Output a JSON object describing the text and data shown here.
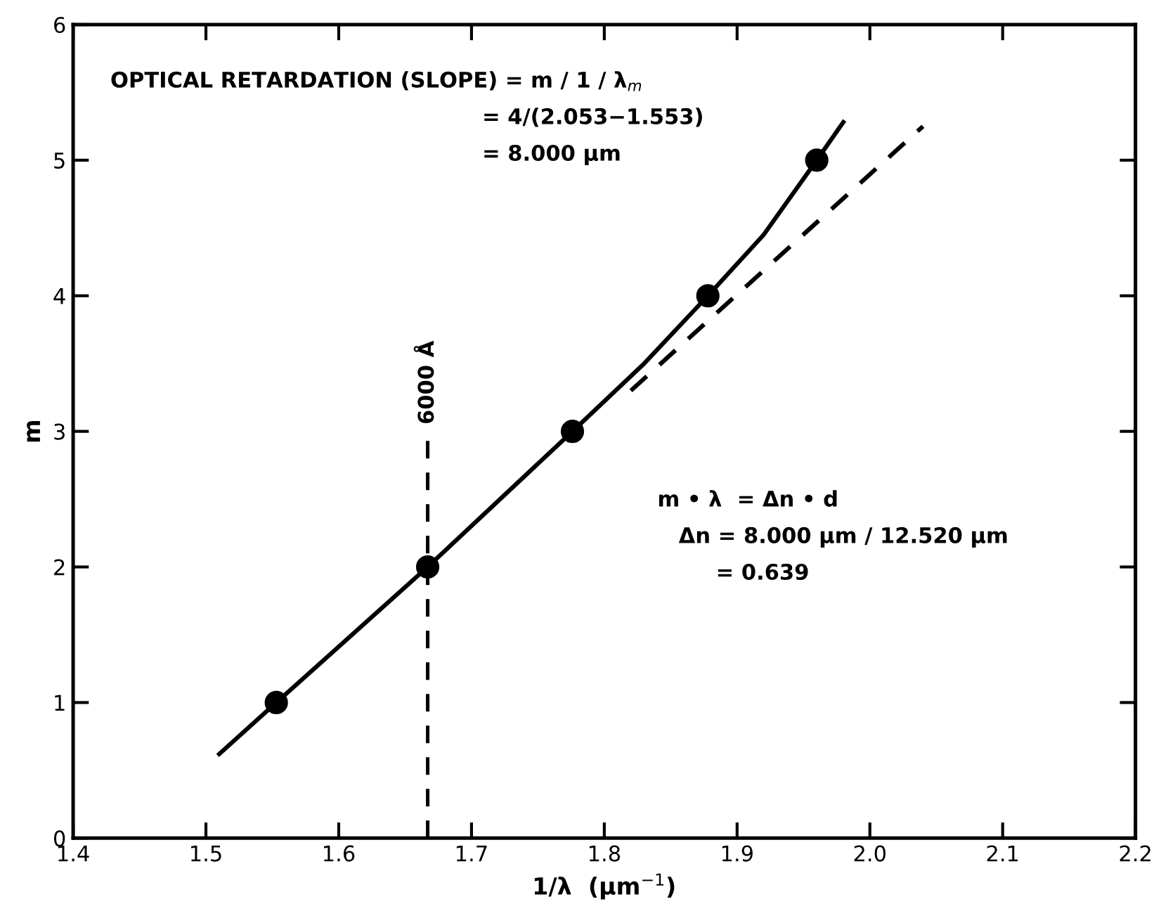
{
  "chart_data": {
    "type": "scatter",
    "xlabel": "1/λ  (μm$^{−1}$)",
    "ylabel": "m",
    "xlim": [
      1.4,
      2.2
    ],
    "ylim": [
      0,
      6
    ],
    "xticks": [
      {
        "value": 1.4,
        "label": "1.4"
      },
      {
        "value": 1.5,
        "label": "1.5"
      },
      {
        "value": 1.6,
        "label": "1.6"
      },
      {
        "value": 1.7,
        "label": "1.7"
      },
      {
        "value": 1.8,
        "label": "1.8"
      },
      {
        "value": 1.9,
        "label": "1.9"
      },
      {
        "value": 2.0,
        "label": "2.0"
      },
      {
        "value": 2.1,
        "label": "2.1"
      },
      {
        "value": 2.2,
        "label": "2.2"
      }
    ],
    "yticks": [
      0,
      1,
      2,
      3,
      4,
      5,
      6
    ],
    "grid": false,
    "series": [
      {
        "type": "line",
        "color": "#000000",
        "line_style": "solid",
        "marker": "none",
        "x": [
          1.51,
          1.553,
          1.667,
          1.776,
          1.83,
          1.878,
          1.92,
          1.96,
          1.98
        ],
        "values": [
          0.62,
          1,
          2,
          3,
          3.5,
          4,
          4.45,
          5,
          5.28
        ]
      },
      {
        "type": "line",
        "color": "#000000",
        "line_style": "dashed",
        "marker": "none",
        "x": [
          1.82,
          2.04
        ],
        "values": [
          3.3,
          5.25
        ]
      },
      {
        "color": "#000000",
        "marker": "circle",
        "x": [
          1.553,
          1.667,
          1.776,
          1.878,
          1.96
        ],
        "values": [
          1,
          2,
          3,
          4,
          5
        ]
      }
    ],
    "ref_lines": [
      {
        "axis": "x",
        "value": 1.667,
        "label": "6000 Å",
        "line_style": "dashed",
        "color": "#000000"
      }
    ],
    "annotations": [
      "OPTICAL RETARDATION (SLOPE) = m / 1 / λ$_{m}$",
      "= 4/(2.053−1.553)",
      "= 8.000 μm",
      "m • λ  = Δn • d",
      "Δn = 8.000 μm / 12.520 μm",
      "= 0.639"
    ]
  }
}
